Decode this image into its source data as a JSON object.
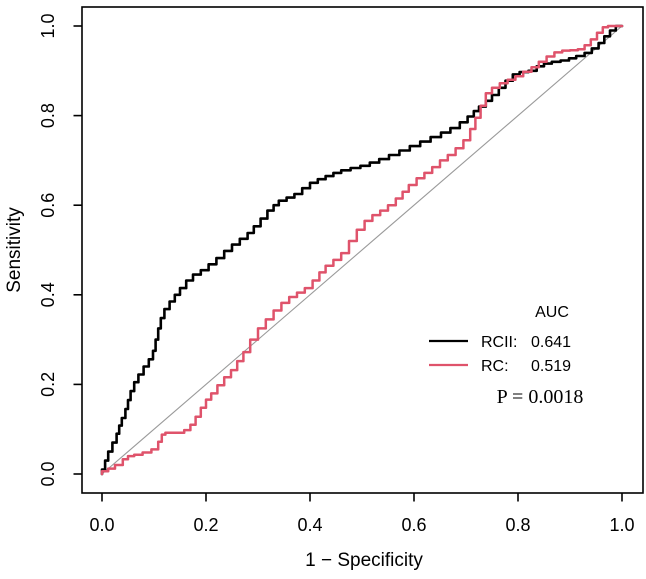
{
  "figure": {
    "background": "#ffffff",
    "text_color": "#000000"
  },
  "chart_data": {
    "type": "line",
    "subtype": "roc-curves",
    "title": "",
    "xlabel": "1 − Specificity",
    "ylabel": "Sensitivity",
    "xlim": [
      0.0,
      1.0
    ],
    "ylim": [
      0.0,
      1.0
    ],
    "xticks": [
      "0.0",
      "0.2",
      "0.4",
      "0.6",
      "0.8",
      "1.0"
    ],
    "yticks": [
      "0.0",
      "0.2",
      "0.4",
      "0.6",
      "0.8",
      "1.0"
    ],
    "grid": "off",
    "box": "on",
    "diagonal_reference": {
      "from": [
        0,
        0
      ],
      "to": [
        1,
        1
      ],
      "color": "#9a9a9a"
    },
    "series": [
      {
        "name": "RCII",
        "auc": 0.641,
        "color": "#000000",
        "points": [
          [
            0,
            0
          ],
          [
            0.006,
            0.01
          ],
          [
            0.012,
            0.03
          ],
          [
            0.02,
            0.05
          ],
          [
            0.028,
            0.07
          ],
          [
            0.033,
            0.09
          ],
          [
            0.038,
            0.108
          ],
          [
            0.045,
            0.125
          ],
          [
            0.05,
            0.145
          ],
          [
            0.055,
            0.165
          ],
          [
            0.062,
            0.185
          ],
          [
            0.07,
            0.205
          ],
          [
            0.08,
            0.222
          ],
          [
            0.09,
            0.24
          ],
          [
            0.098,
            0.256
          ],
          [
            0.103,
            0.275
          ],
          [
            0.108,
            0.3
          ],
          [
            0.113,
            0.325
          ],
          [
            0.12,
            0.348
          ],
          [
            0.13,
            0.368
          ],
          [
            0.14,
            0.385
          ],
          [
            0.15,
            0.4
          ],
          [
            0.162,
            0.415
          ],
          [
            0.175,
            0.432
          ],
          [
            0.19,
            0.445
          ],
          [
            0.205,
            0.455
          ],
          [
            0.22,
            0.468
          ],
          [
            0.235,
            0.482
          ],
          [
            0.25,
            0.498
          ],
          [
            0.265,
            0.512
          ],
          [
            0.28,
            0.525
          ],
          [
            0.292,
            0.538
          ],
          [
            0.305,
            0.553
          ],
          [
            0.318,
            0.57
          ],
          [
            0.33,
            0.588
          ],
          [
            0.34,
            0.6
          ],
          [
            0.355,
            0.61
          ],
          [
            0.37,
            0.617
          ],
          [
            0.385,
            0.625
          ],
          [
            0.4,
            0.638
          ],
          [
            0.415,
            0.65
          ],
          [
            0.43,
            0.658
          ],
          [
            0.445,
            0.665
          ],
          [
            0.46,
            0.672
          ],
          [
            0.478,
            0.678
          ],
          [
            0.497,
            0.683
          ],
          [
            0.515,
            0.688
          ],
          [
            0.533,
            0.695
          ],
          [
            0.552,
            0.703
          ],
          [
            0.572,
            0.712
          ],
          [
            0.592,
            0.722
          ],
          [
            0.612,
            0.732
          ],
          [
            0.632,
            0.742
          ],
          [
            0.652,
            0.752
          ],
          [
            0.67,
            0.762
          ],
          [
            0.688,
            0.772
          ],
          [
            0.703,
            0.785
          ],
          [
            0.715,
            0.798
          ],
          [
            0.725,
            0.81
          ],
          [
            0.738,
            0.82
          ],
          [
            0.75,
            0.833
          ],
          [
            0.763,
            0.846
          ],
          [
            0.776,
            0.862
          ],
          [
            0.79,
            0.878
          ],
          [
            0.803,
            0.892
          ],
          [
            0.82,
            0.897
          ],
          [
            0.836,
            0.9
          ],
          [
            0.85,
            0.91
          ],
          [
            0.865,
            0.916
          ],
          [
            0.882,
            0.92
          ],
          [
            0.898,
            0.923
          ],
          [
            0.912,
            0.928
          ],
          [
            0.928,
            0.933
          ],
          [
            0.942,
            0.94
          ],
          [
            0.955,
            0.95
          ],
          [
            0.966,
            0.962
          ],
          [
            0.977,
            0.977
          ],
          [
            0.988,
            0.99
          ],
          [
            1,
            1
          ]
        ]
      },
      {
        "name": "RC",
        "auc": 0.519,
        "color": "#DF536B",
        "points": [
          [
            0,
            0
          ],
          [
            0.012,
            0.006
          ],
          [
            0.025,
            0.012
          ],
          [
            0.04,
            0.02
          ],
          [
            0.05,
            0.033
          ],
          [
            0.062,
            0.04
          ],
          [
            0.078,
            0.043
          ],
          [
            0.095,
            0.048
          ],
          [
            0.108,
            0.055
          ],
          [
            0.115,
            0.072
          ],
          [
            0.122,
            0.088
          ],
          [
            0.14,
            0.092
          ],
          [
            0.158,
            0.092
          ],
          [
            0.17,
            0.098
          ],
          [
            0.18,
            0.11
          ],
          [
            0.19,
            0.128
          ],
          [
            0.2,
            0.148
          ],
          [
            0.21,
            0.166
          ],
          [
            0.222,
            0.18
          ],
          [
            0.235,
            0.198
          ],
          [
            0.248,
            0.216
          ],
          [
            0.26,
            0.232
          ],
          [
            0.272,
            0.252
          ],
          [
            0.285,
            0.272
          ],
          [
            0.3,
            0.3
          ],
          [
            0.315,
            0.325
          ],
          [
            0.33,
            0.345
          ],
          [
            0.345,
            0.365
          ],
          [
            0.36,
            0.382
          ],
          [
            0.375,
            0.395
          ],
          [
            0.39,
            0.405
          ],
          [
            0.405,
            0.415
          ],
          [
            0.418,
            0.432
          ],
          [
            0.43,
            0.45
          ],
          [
            0.445,
            0.465
          ],
          [
            0.46,
            0.478
          ],
          [
            0.475,
            0.493
          ],
          [
            0.49,
            0.52
          ],
          [
            0.505,
            0.545
          ],
          [
            0.52,
            0.565
          ],
          [
            0.535,
            0.578
          ],
          [
            0.55,
            0.588
          ],
          [
            0.565,
            0.6
          ],
          [
            0.578,
            0.615
          ],
          [
            0.59,
            0.63
          ],
          [
            0.605,
            0.645
          ],
          [
            0.62,
            0.66
          ],
          [
            0.635,
            0.672
          ],
          [
            0.65,
            0.685
          ],
          [
            0.665,
            0.7
          ],
          [
            0.68,
            0.712
          ],
          [
            0.695,
            0.727
          ],
          [
            0.708,
            0.745
          ],
          [
            0.718,
            0.77
          ],
          [
            0.728,
            0.795
          ],
          [
            0.738,
            0.822
          ],
          [
            0.75,
            0.85
          ],
          [
            0.765,
            0.862
          ],
          [
            0.78,
            0.872
          ],
          [
            0.795,
            0.88
          ],
          [
            0.81,
            0.888
          ],
          [
            0.826,
            0.898
          ],
          [
            0.84,
            0.908
          ],
          [
            0.855,
            0.92
          ],
          [
            0.87,
            0.932
          ],
          [
            0.885,
            0.941
          ],
          [
            0.9,
            0.945
          ],
          [
            0.915,
            0.946
          ],
          [
            0.928,
            0.948
          ],
          [
            0.94,
            0.957
          ],
          [
            0.952,
            0.97
          ],
          [
            0.963,
            0.985
          ],
          [
            0.973,
            0.997
          ],
          [
            1,
            1
          ]
        ]
      }
    ],
    "legend": {
      "position": "right-center",
      "title": "AUC",
      "entries": [
        {
          "label": "RCII:",
          "value": "0.641"
        },
        {
          "label": "RC:",
          "value": "0.519"
        }
      ],
      "annotation": "P = 0.0018"
    }
  }
}
